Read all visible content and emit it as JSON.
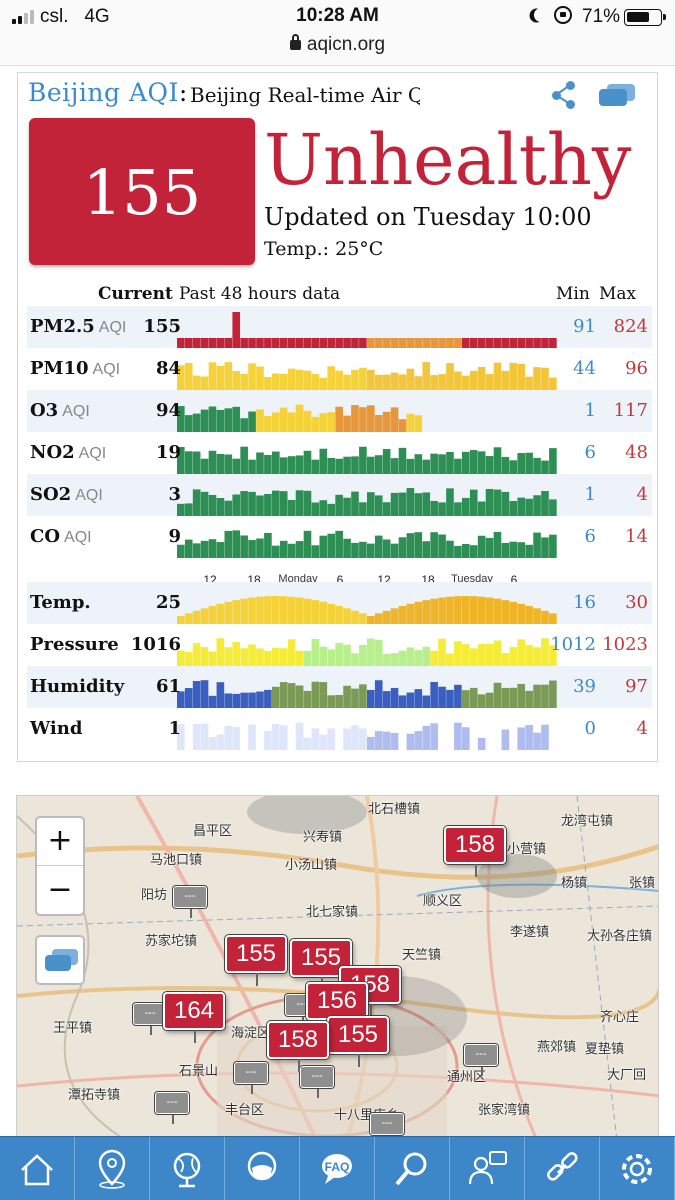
{
  "status_bar": {
    "carrier": "csl.",
    "network": "4G",
    "time": "10:28 AM",
    "battery_percent": "71%",
    "battery_level": 0.71,
    "url": "aqicn.org"
  },
  "card": {
    "title": "Beijing AQI",
    "title_sep": ":",
    "subtitle": "Beijing Real-time Air Quality",
    "aqi_value": "155",
    "aqi_level": "Unhealthy",
    "aqi_color": "#c22339",
    "updated": "Updated on Tuesday 10:00",
    "temperature": "Temp.: 25°C",
    "header": {
      "current": "Current",
      "past": "Past 48 hours data",
      "min": "Min",
      "max": "Max"
    },
    "axis_labels": [
      "12",
      "18",
      "Monday",
      "6",
      "12",
      "18",
      "Tuesday",
      "6"
    ],
    "rows": [
      {
        "name": "PM2.5",
        "unit": "AQI",
        "current": "155",
        "min": "91",
        "max": "824"
      },
      {
        "name": "PM10",
        "unit": "AQI",
        "current": "84",
        "min": "44",
        "max": "96"
      },
      {
        "name": "O3",
        "unit": "AQI",
        "current": "94",
        "min": "1",
        "max": "117"
      },
      {
        "name": "NO2",
        "unit": "AQI",
        "current": "19",
        "min": "6",
        "max": "48"
      },
      {
        "name": "SO2",
        "unit": "AQI",
        "current": "3",
        "min": "1",
        "max": "4"
      },
      {
        "name": "CO",
        "unit": "AQI",
        "current": "9",
        "min": "6",
        "max": "14"
      },
      {
        "name": "Temp.",
        "unit": "",
        "current": "25",
        "min": "16",
        "max": "30"
      },
      {
        "name": "Pressure",
        "unit": "",
        "current": "1016",
        "min": "1012",
        "max": "1023"
      },
      {
        "name": "Humidity",
        "unit": "",
        "current": "61",
        "min": "39",
        "max": "97"
      },
      {
        "name": "Wind",
        "unit": "",
        "current": "1",
        "min": "0",
        "max": "4"
      }
    ]
  },
  "map": {
    "zoom_in": "+",
    "zoom_out": "−",
    "places": [
      "昌平区",
      "北石槽镇",
      "龙湾屯镇",
      "兴寿镇",
      "马池口镇",
      "小汤山镇",
      "小营镇",
      "阳坊",
      "杨镇",
      "张镇",
      "北七家镇",
      "顺义区",
      "苏家坨镇",
      "李遂镇",
      "大孙各庄镇",
      "天竺镇",
      "王平镇",
      "海淀区",
      "齐心庄",
      "潭拓寺镇",
      "石景山",
      "燕郊镇",
      "夏垫镇",
      "大厂回",
      "丰台区",
      "十八里店乡",
      "通州区",
      "张家湾镇"
    ],
    "markers": [
      "158",
      "155",
      "155",
      "158",
      "156",
      "164",
      "155",
      "158"
    ],
    "no_data_marker": "---"
  },
  "nav": [
    "home-icon",
    "location-pin-icon",
    "globe-icon",
    "mask-icon",
    "faq-icon",
    "search-icon",
    "chat-icon",
    "link-icon",
    "gear-icon"
  ]
}
